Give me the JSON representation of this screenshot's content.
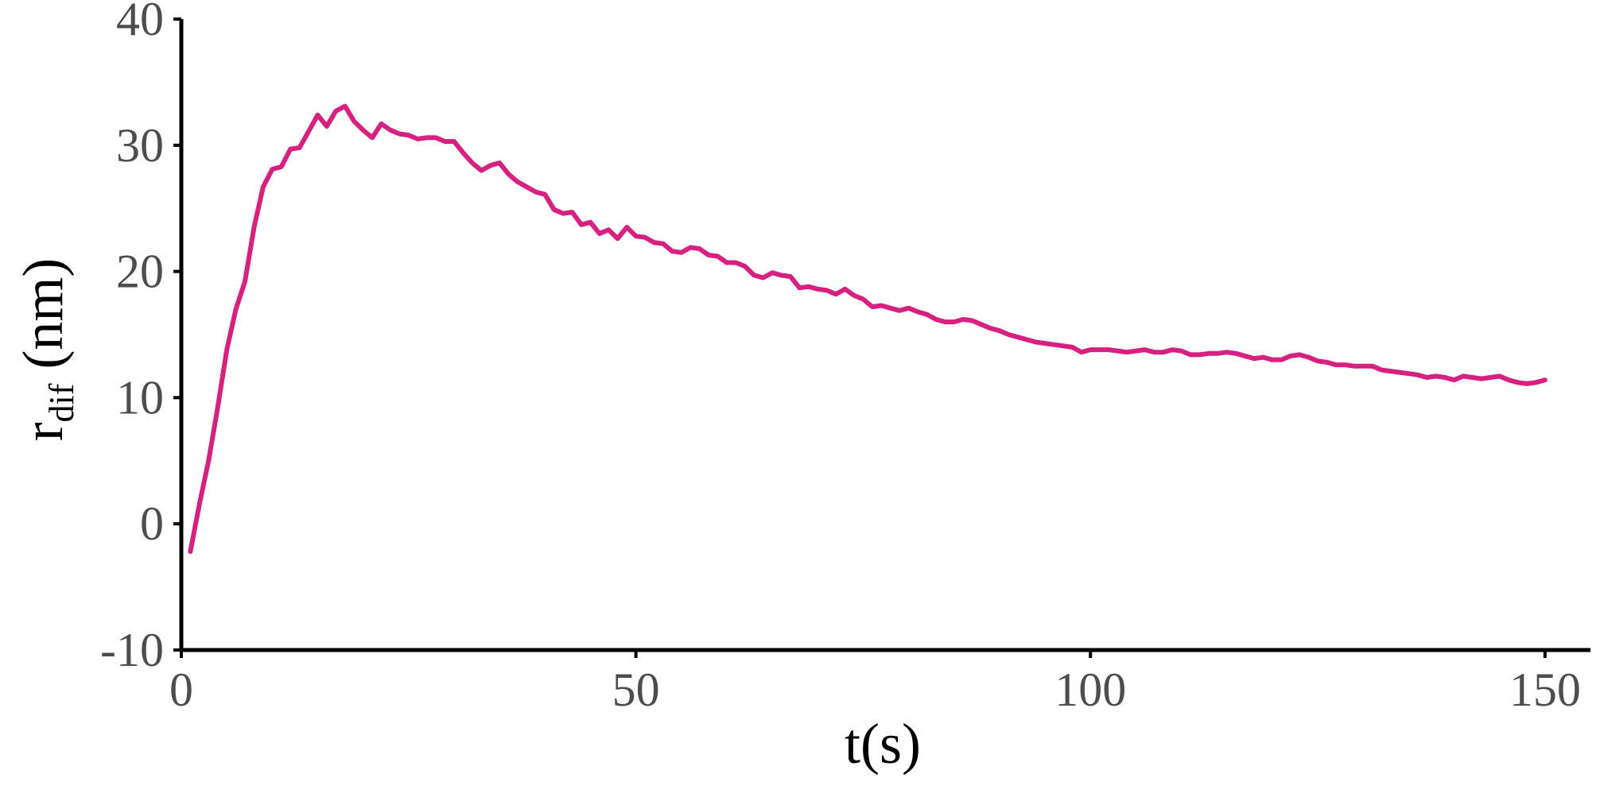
{
  "chart_data": {
    "type": "line",
    "title": "",
    "xlabel": "t(s)",
    "ylabel_main": "r",
    "ylabel_sub": "dif",
    "ylabel_unit": " (nm)",
    "xlim": [
      0,
      155
    ],
    "ylim": [
      -10,
      40
    ],
    "x_ticks": [
      0,
      50,
      100,
      150
    ],
    "x_tick_labels": [
      "0",
      "50",
      "100",
      "150"
    ],
    "y_ticks": [
      -10,
      0,
      10,
      20,
      30,
      40
    ],
    "y_tick_labels": [
      "-10",
      "0",
      "10",
      "20",
      "30",
      "40"
    ],
    "grid": false,
    "line_color": "#d62180",
    "axis_color": "#000000",
    "series": [
      {
        "x": [
          1,
          2,
          3,
          4,
          5,
          6,
          7,
          8,
          9,
          10,
          11,
          12,
          13,
          14,
          15,
          16,
          17,
          18,
          19,
          20,
          21,
          22,
          23,
          24,
          25,
          26,
          27,
          28,
          29,
          30,
          31,
          32,
          33,
          34,
          35,
          36,
          37,
          38,
          39,
          40,
          41,
          42,
          43,
          44,
          45,
          46,
          47,
          48,
          49,
          50,
          51,
          52,
          53,
          54,
          55,
          56,
          57,
          58,
          59,
          60,
          61,
          62,
          63,
          64,
          65,
          66,
          67,
          68,
          69,
          70,
          71,
          72,
          73,
          74,
          75,
          76,
          77,
          78,
          79,
          80,
          81,
          82,
          83,
          84,
          85,
          86,
          87,
          88,
          89,
          90,
          91,
          92,
          93,
          94,
          95,
          96,
          97,
          98,
          99,
          100,
          101,
          102,
          103,
          104,
          105,
          106,
          107,
          108,
          109,
          110,
          111,
          112,
          113,
          114,
          115,
          116,
          117,
          118,
          119,
          120,
          121,
          122,
          123,
          124,
          125,
          126,
          127,
          128,
          129,
          130,
          131,
          132,
          133,
          134,
          135,
          136,
          137,
          138,
          139,
          140,
          141,
          142,
          143,
          144,
          145,
          146,
          147,
          148,
          149,
          150
        ],
        "y": [
          -2.2,
          1.6,
          5.0,
          9.2,
          13.8,
          17.0,
          19.2,
          23.5,
          26.7,
          28.1,
          28.3,
          29.7,
          29.8,
          31.1,
          32.4,
          31.5,
          32.7,
          33.1,
          31.9,
          31.2,
          30.6,
          31.7,
          31.2,
          30.9,
          30.8,
          30.5,
          30.6,
          30.6,
          30.3,
          30.3,
          29.4,
          28.6,
          28.0,
          28.4,
          28.6,
          27.7,
          27.1,
          26.7,
          26.3,
          26.1,
          24.9,
          24.6,
          24.7,
          23.7,
          23.9,
          23.0,
          23.3,
          22.6,
          23.5,
          22.8,
          22.7,
          22.3,
          22.2,
          21.6,
          21.5,
          21.9,
          21.8,
          21.3,
          21.2,
          20.7,
          20.7,
          20.4,
          19.7,
          19.5,
          19.9,
          19.7,
          19.6,
          18.7,
          18.8,
          18.6,
          18.5,
          18.2,
          18.6,
          18.1,
          17.8,
          17.2,
          17.3,
          17.1,
          16.9,
          17.1,
          16.8,
          16.6,
          16.2,
          16.0,
          16.0,
          16.2,
          16.1,
          15.8,
          15.5,
          15.3,
          15.0,
          14.8,
          14.6,
          14.4,
          14.3,
          14.2,
          14.1,
          14.0,
          13.6,
          13.8,
          13.8,
          13.8,
          13.7,
          13.6,
          13.7,
          13.8,
          13.6,
          13.6,
          13.8,
          13.7,
          13.4,
          13.4,
          13.5,
          13.5,
          13.6,
          13.5,
          13.3,
          13.1,
          13.2,
          13.0,
          13.0,
          13.3,
          13.4,
          13.2,
          12.9,
          12.8,
          12.6,
          12.6,
          12.5,
          12.5,
          12.5,
          12.2,
          12.1,
          12.0,
          11.9,
          11.8,
          11.6,
          11.7,
          11.6,
          11.4,
          11.7,
          11.6,
          11.5,
          11.6,
          11.7,
          11.4,
          11.2,
          11.1,
          11.2,
          11.4
        ]
      }
    ]
  }
}
